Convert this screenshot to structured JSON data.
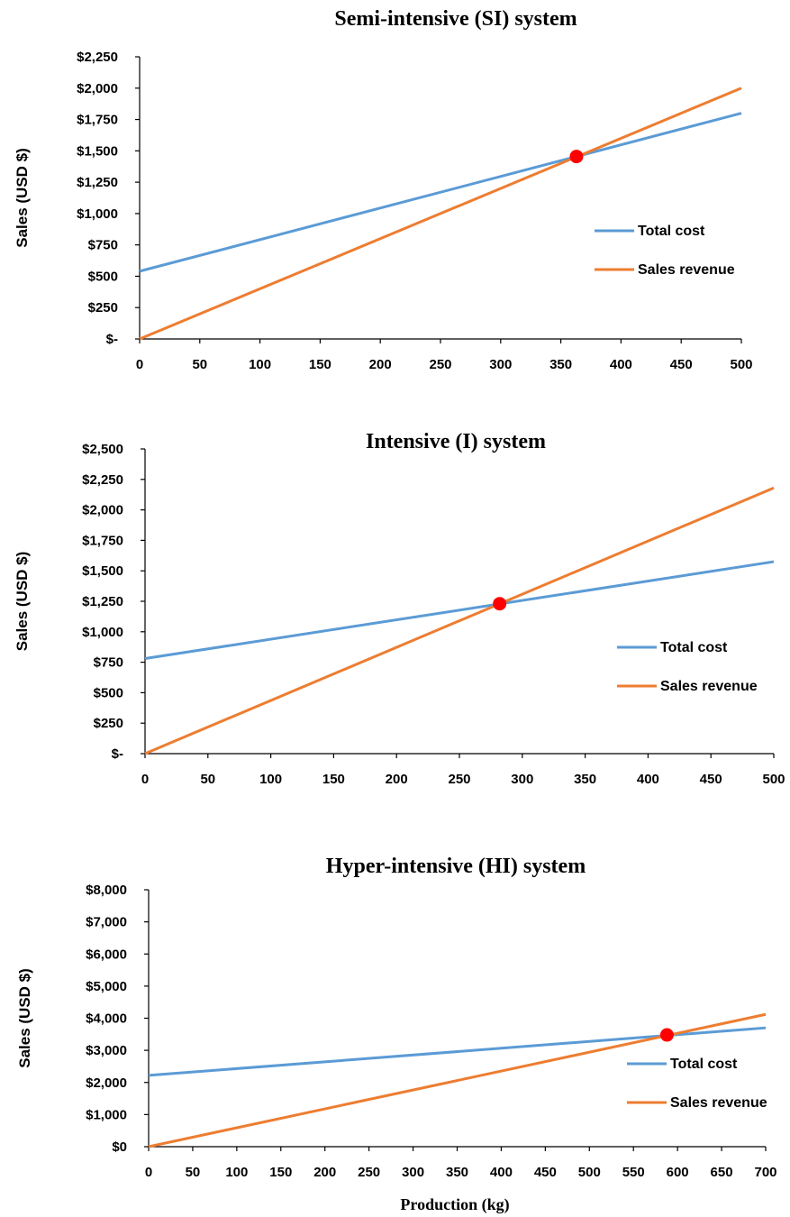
{
  "figure": {
    "xlabel": "Production (kg)"
  },
  "chart_data": [
    {
      "type": "line",
      "title": "Semi-intensive (SI) system",
      "xlabel": "",
      "ylabel": "Sales (USD $)",
      "xlim": [
        0,
        500
      ],
      "ylim": [
        0,
        2250
      ],
      "x_ticks": [
        0,
        50,
        100,
        150,
        200,
        250,
        300,
        350,
        400,
        450,
        500
      ],
      "y_ticks": [
        0,
        250,
        500,
        750,
        1000,
        1250,
        1500,
        1750,
        2000,
        2250
      ],
      "y_tick_labels": [
        "$-",
        "$250",
        "$500",
        "$750",
        "$1,000",
        "$1,250",
        "$1,500",
        "$1,750",
        "$2,000",
        "$2,250"
      ],
      "grid": false,
      "legend": "right",
      "series": [
        {
          "name": "Total cost",
          "color": "#5B9BD5",
          "x": [
            0,
            500
          ],
          "y": [
            540,
            1800
          ]
        },
        {
          "name": "Sales revenue",
          "color": "#ED7D31",
          "x": [
            0,
            500
          ],
          "y": [
            0,
            2000
          ]
        }
      ],
      "break_even": {
        "x": 363,
        "y": 1455,
        "color": "#FF0000"
      }
    },
    {
      "type": "line",
      "title": "Intensive (I) system",
      "xlabel": "",
      "ylabel": "Sales (USD $)",
      "xlim": [
        0,
        500
      ],
      "ylim": [
        0,
        2500
      ],
      "x_ticks": [
        0,
        50,
        100,
        150,
        200,
        250,
        300,
        350,
        400,
        450,
        500
      ],
      "y_ticks": [
        0,
        250,
        500,
        750,
        1000,
        1250,
        1500,
        1750,
        2000,
        2250,
        2500
      ],
      "y_tick_labels": [
        "$-",
        "$250",
        "$500",
        "$750",
        "$1,000",
        "$1,250",
        "$1,500",
        "$1,750",
        "$2,000",
        "$2,250",
        "$2,500"
      ],
      "grid": false,
      "legend": "right",
      "series": [
        {
          "name": "Total cost",
          "color": "#5B9BD5",
          "x": [
            0,
            500
          ],
          "y": [
            780,
            1575
          ]
        },
        {
          "name": "Sales revenue",
          "color": "#ED7D31",
          "x": [
            0,
            500
          ],
          "y": [
            0,
            2180
          ]
        }
      ],
      "break_even": {
        "x": 282,
        "y": 1230,
        "color": "#FF0000"
      }
    },
    {
      "type": "line",
      "title": "Hyper-intensive (HI) system",
      "xlabel": "Production (kg)",
      "ylabel": "Sales (USD $)",
      "xlim": [
        0,
        700
      ],
      "ylim": [
        0,
        8000
      ],
      "x_ticks": [
        0,
        50,
        100,
        150,
        200,
        250,
        300,
        350,
        400,
        450,
        500,
        550,
        600,
        650,
        700
      ],
      "y_ticks": [
        0,
        1000,
        2000,
        3000,
        4000,
        5000,
        6000,
        7000,
        8000
      ],
      "y_tick_labels": [
        "$0",
        "$1,000",
        "$2,000",
        "$3,000",
        "$4,000",
        "$5,000",
        "$6,000",
        "$7,000",
        "$8,000"
      ],
      "grid": false,
      "legend": "right",
      "series": [
        {
          "name": "Total cost",
          "color": "#5B9BD5",
          "x": [
            0,
            700
          ],
          "y": [
            2220,
            3700
          ]
        },
        {
          "name": "Sales revenue",
          "color": "#ED7D31",
          "x": [
            0,
            700
          ],
          "y": [
            0,
            4120
          ]
        }
      ],
      "break_even": {
        "x": 588,
        "y": 3480,
        "color": "#FF0000"
      }
    }
  ]
}
